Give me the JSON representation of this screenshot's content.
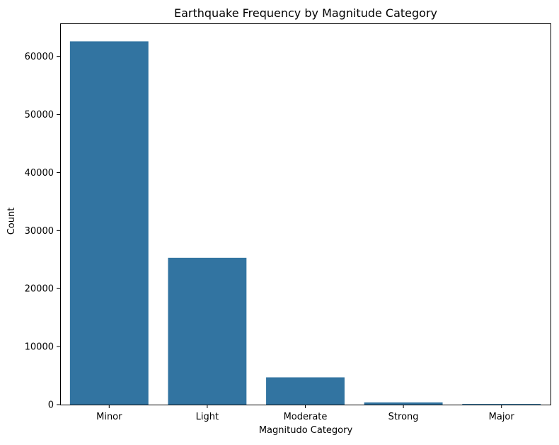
{
  "chart_data": {
    "type": "bar",
    "title": "Earthquake Frequency by Magnitude Category",
    "xlabel": "Magnitudo Category",
    "ylabel": "Count",
    "categories": [
      "Minor",
      "Light",
      "Moderate",
      "Strong",
      "Major"
    ],
    "values": [
      62600,
      25300,
      4700,
      380,
      110
    ],
    "ylim": [
      0,
      65700
    ],
    "yticks": [
      0,
      10000,
      20000,
      30000,
      40000,
      50000,
      60000
    ],
    "bar_color": "#3274a1",
    "grid": false,
    "legend": "none"
  }
}
